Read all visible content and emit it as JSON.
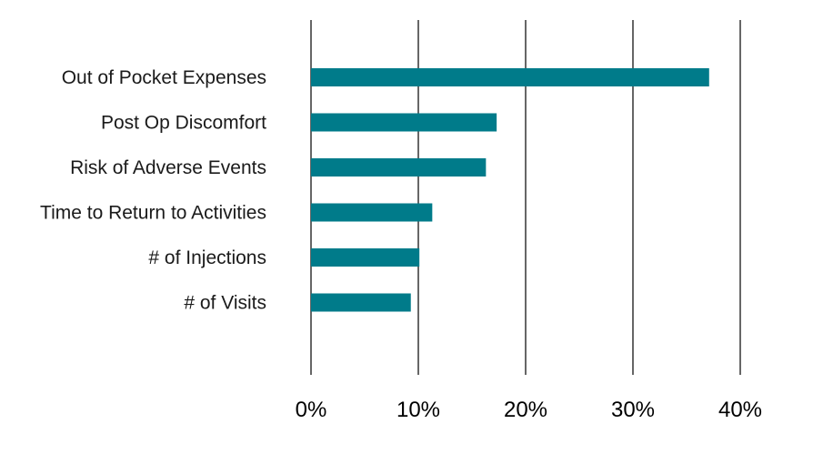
{
  "chart_data": {
    "type": "bar",
    "orientation": "horizontal",
    "categories": [
      "Out of Pocket Expenses",
      "Post Op Discomfort",
      "Risk of Adverse Events",
      "Time to Return to Activities",
      "# of Injections",
      "# of Visits"
    ],
    "values": [
      37.1,
      17.3,
      16.3,
      11.3,
      10.1,
      9.3
    ],
    "xticks": [
      "0%",
      "10%",
      "20%",
      "30%",
      "40%"
    ],
    "xtick_values": [
      0,
      10,
      20,
      30,
      40
    ],
    "xlim": [
      0,
      40
    ],
    "grid": true,
    "bar_color": "#007b8a",
    "legend": "none"
  }
}
